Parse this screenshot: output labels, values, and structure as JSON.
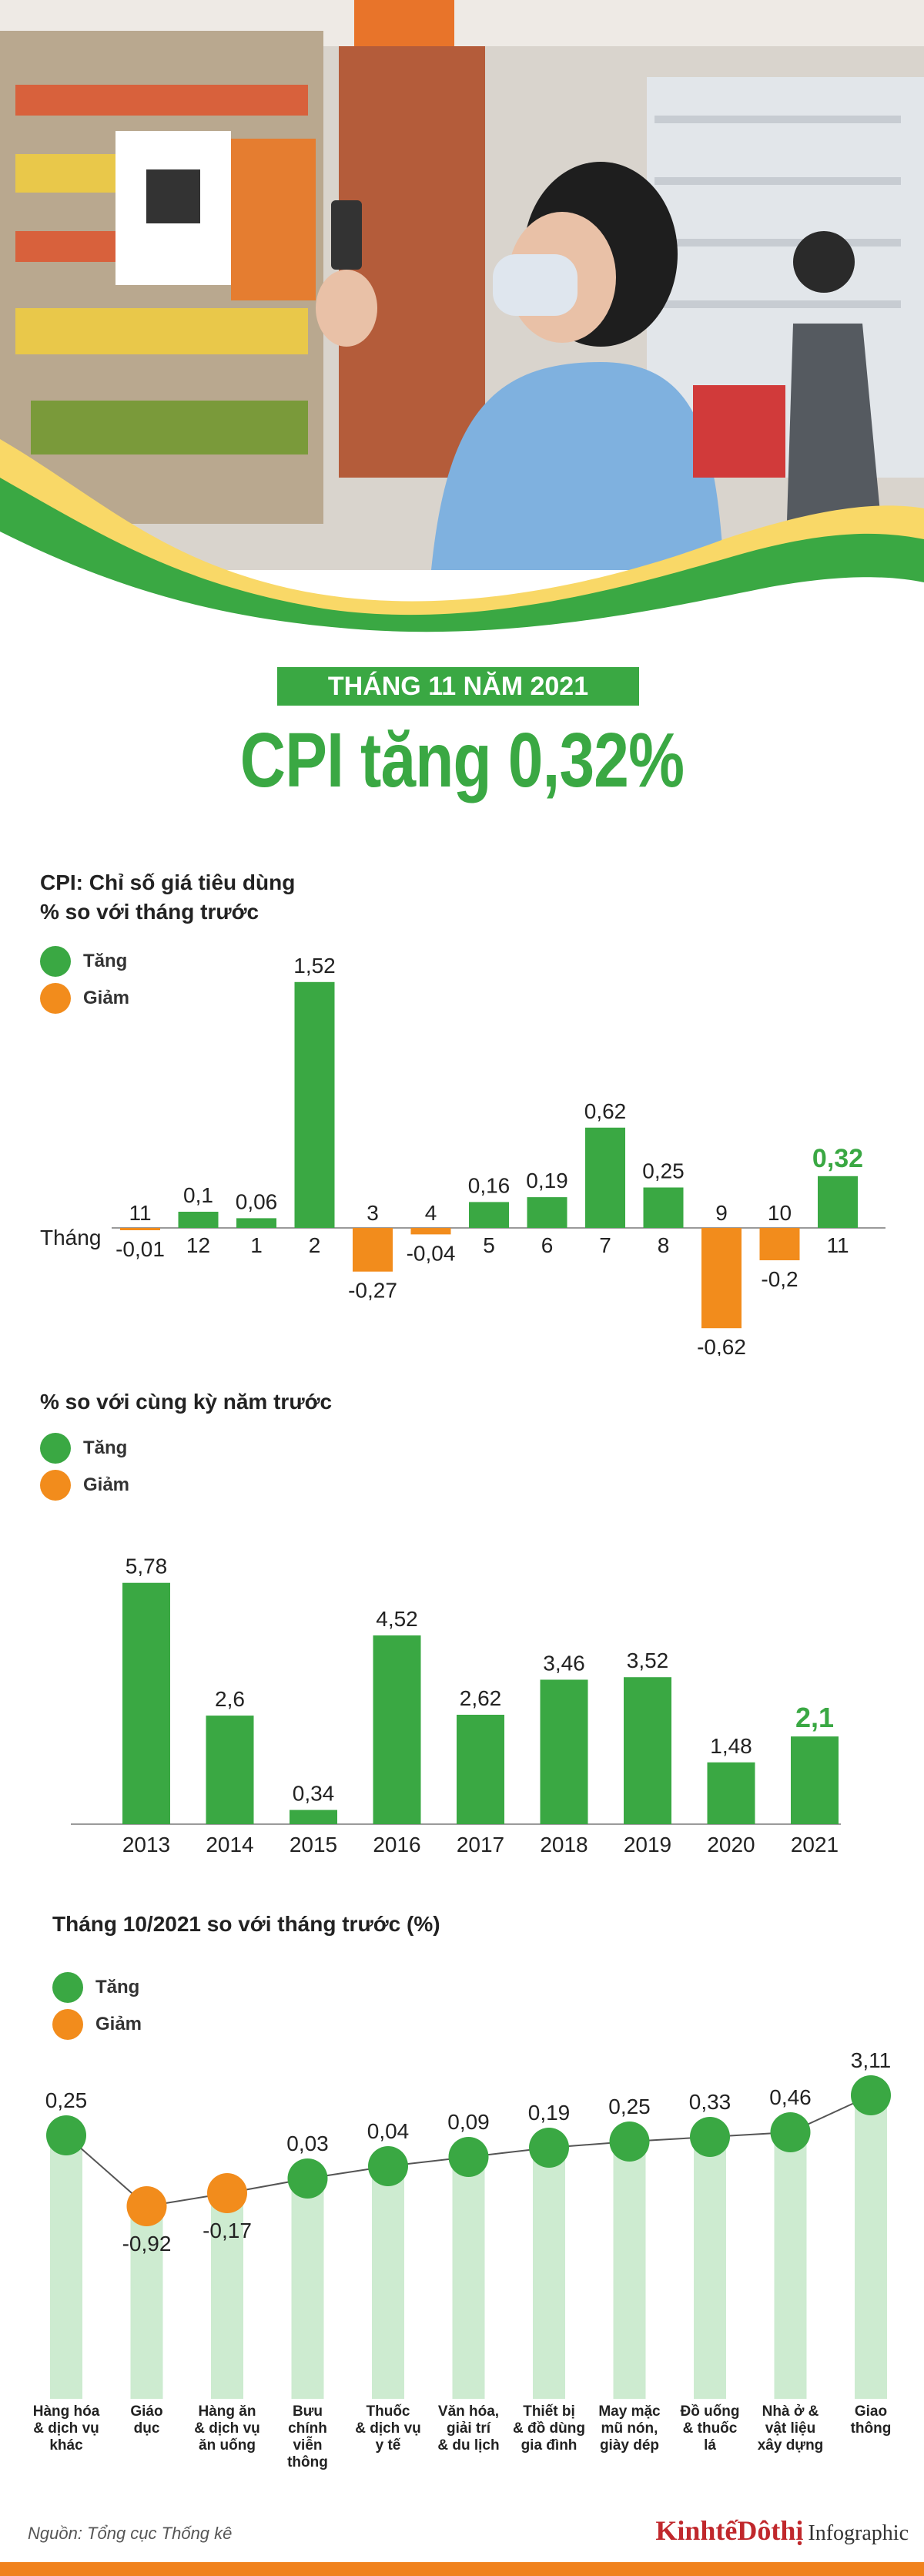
{
  "header": {
    "badge": "THÁNG 11 NĂM 2021",
    "headline": "CPI tăng 0,32%"
  },
  "colors": {
    "increase": "#3aa843",
    "decrease": "#f28c1c",
    "increase_light": "#cdebd0"
  },
  "legend": {
    "increase": "Tăng",
    "decrease": "Giảm"
  },
  "chart1_title": {
    "line1": "CPI: Chỉ số giá tiêu dùng",
    "line2": "% so với tháng trước"
  },
  "chart2_title": "% so với cùng kỳ năm trước",
  "chart3_title": "Tháng 10/2021 so với tháng trước (%)",
  "chart_data": [
    {
      "type": "bar",
      "title": "CPI: Chỉ số giá tiêu dùng",
      "subtitle": "% so với tháng trước",
      "xlabel": "Tháng",
      "categories": [
        "11",
        "12",
        "1",
        "2",
        "3",
        "4",
        "5",
        "6",
        "7",
        "8",
        "9",
        "10",
        "11"
      ],
      "values": [
        -0.01,
        0.1,
        0.06,
        1.52,
        -0.27,
        -0.04,
        0.16,
        0.19,
        0.62,
        0.25,
        -0.62,
        -0.2,
        0.32
      ],
      "labels": [
        "-0,01",
        "0,1",
        "0,06",
        "1,52",
        "-0,27",
        "-0,04",
        "0,16",
        "0,19",
        "0,62",
        "0,25",
        "-0,62",
        "-0,2",
        "0,32"
      ],
      "legend": [
        "Tăng",
        "Giảm"
      ]
    },
    {
      "type": "bar",
      "title": "% so với cùng kỳ năm trước",
      "categories": [
        "2013",
        "2014",
        "2015",
        "2016",
        "2017",
        "2018",
        "2019",
        "2020",
        "2021"
      ],
      "values": [
        5.78,
        2.6,
        0.34,
        4.52,
        2.62,
        3.46,
        3.52,
        1.48,
        2.1
      ],
      "labels": [
        "5,78",
        "2,6",
        "0,34",
        "4,52",
        "2,62",
        "3,46",
        "3,52",
        "1,48",
        "2,1"
      ],
      "legend": [
        "Tăng",
        "Giảm"
      ]
    },
    {
      "type": "line",
      "title": "Tháng 10/2021 so với tháng trước (%)",
      "categories": [
        [
          "Hàng hóa",
          "& dịch vụ",
          "khác"
        ],
        [
          "Giáo",
          "dục"
        ],
        [
          "Hàng ăn",
          "& dịch vụ",
          "ăn uống"
        ],
        [
          "Bưu",
          "chính",
          "viễn",
          "thông"
        ],
        [
          "Thuốc",
          "& dịch vụ",
          "y tế"
        ],
        [
          "Văn hóa,",
          "giải trí",
          "& du lịch"
        ],
        [
          "Thiết bị",
          "& đồ dùng",
          "gia đình"
        ],
        [
          "May mặc",
          "mũ nón,",
          "giày dép"
        ],
        [
          "Đồ uống",
          "& thuốc",
          "lá"
        ],
        [
          "Nhà ở &",
          "vật liệu",
          "xây dựng"
        ],
        [
          "Giao",
          "thông"
        ]
      ],
      "values": [
        0.25,
        -0.92,
        -0.17,
        0.03,
        0.04,
        0.09,
        0.19,
        0.25,
        0.33,
        0.46,
        3.11
      ],
      "labels": [
        "0,25",
        "-0,92",
        "-0,17",
        "0,03",
        "0,04",
        "0,09",
        "0,19",
        "0,25",
        "0,33",
        "0,46",
        "3,11"
      ],
      "legend": [
        "Tăng",
        "Giảm"
      ]
    }
  ],
  "footer": {
    "source": "Nguồn: Tổng cục Thống kê",
    "logo": "KinhtếDôthị",
    "logo_sub": "Infographic"
  }
}
